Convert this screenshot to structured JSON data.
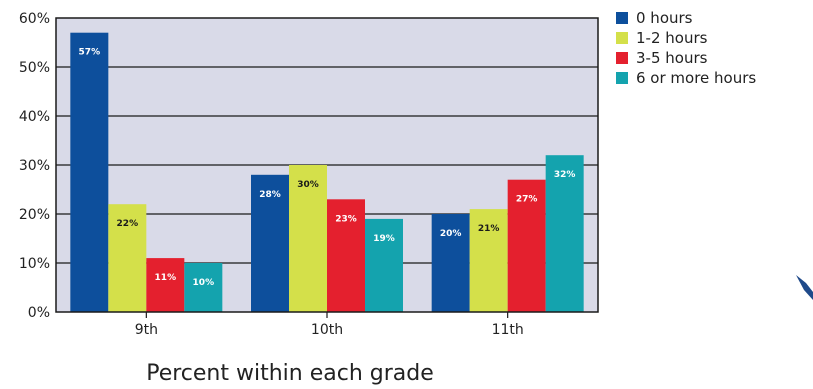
{
  "chart_data": {
    "type": "bar",
    "categories": [
      "9th",
      "10th",
      "11th"
    ],
    "series": [
      {
        "name": "0 hours",
        "values": [
          57,
          28,
          20
        ],
        "labels": [
          "57%",
          "28%",
          "20%"
        ],
        "color": "#0d4f9c",
        "label_color": "#ffffff"
      },
      {
        "name": "1-2 hours",
        "values": [
          22,
          30,
          21
        ],
        "labels": [
          "22%",
          "30%",
          "21%"
        ],
        "color": "#d4e04a",
        "label_color": "#1a1a1a"
      },
      {
        "name": "3-5 hours",
        "values": [
          11,
          23,
          27
        ],
        "labels": [
          "11%",
          "23%",
          "27%"
        ],
        "color": "#e4202e",
        "label_color": "#ffffff"
      },
      {
        "name": "6 or more hours",
        "values": [
          10,
          19,
          32
        ],
        "labels": [
          "10%",
          "19%",
          "32%"
        ],
        "color": "#14a3ae",
        "label_color": "#ffffff"
      }
    ],
    "yticks": [
      "0%",
      "10%",
      "20%",
      "30%",
      "40%",
      "50%",
      "60%"
    ],
    "ylim": [
      0,
      60
    ],
    "grid": true,
    "legend_position": "right",
    "xlabel": "Percent within each grade",
    "title": "",
    "plot_background": "#d9dae8"
  }
}
